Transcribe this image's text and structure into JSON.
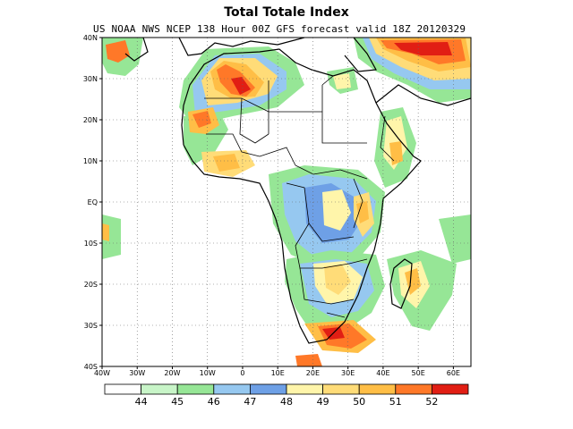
{
  "title": "Total Totale Index",
  "subtitle": "US NOAA NWS NCEP 138 Hour 00Z GFS forecast valid 18Z 20120329",
  "map": {
    "lon_range": [
      -40,
      65
    ],
    "lat_range": [
      -40,
      40
    ],
    "lat_ticks": [
      {
        "lat": 40,
        "label": "40N"
      },
      {
        "lat": 30,
        "label": "30N"
      },
      {
        "lat": 20,
        "label": "20N"
      },
      {
        "lat": 10,
        "label": "10N"
      },
      {
        "lat": 0,
        "label": "EQ"
      },
      {
        "lat": -10,
        "label": "10S"
      },
      {
        "lat": -20,
        "label": "20S"
      },
      {
        "lat": -30,
        "label": "30S"
      },
      {
        "lat": -40,
        "label": "40S"
      }
    ],
    "lon_ticks": [
      {
        "lon": -40,
        "label": "40W"
      },
      {
        "lon": -30,
        "label": "30W"
      },
      {
        "lon": -20,
        "label": "20W"
      },
      {
        "lon": -10,
        "label": "10W"
      },
      {
        "lon": 0,
        "label": "0"
      },
      {
        "lon": 10,
        "label": "10E"
      },
      {
        "lon": 20,
        "label": "20E"
      },
      {
        "lon": 30,
        "label": "30E"
      },
      {
        "lon": 40,
        "label": "40E"
      },
      {
        "lon": 50,
        "label": "50E"
      },
      {
        "lon": 60,
        "label": "60E"
      }
    ],
    "gridlines": true
  },
  "colorbar": {
    "colors": [
      "#ffffff",
      "#c8f5c8",
      "#96e696",
      "#96c8f0",
      "#6ea0e6",
      "#fff5aa",
      "#ffdc78",
      "#ffbe46",
      "#ff7828",
      "#e11e14"
    ],
    "labels": [
      "44",
      "45",
      "46",
      "47",
      "48",
      "49",
      "50",
      "51",
      "52"
    ]
  },
  "fields": {
    "levels": [
      "44-45",
      "45-46",
      "46-47",
      "47-48",
      "48-49",
      "49-50",
      "50-51",
      "51-52",
      ">52"
    ],
    "regions": [
      {
        "name": "northwest-africa",
        "value": 52
      },
      {
        "name": "sahara-west",
        "value": 51
      },
      {
        "name": "west-africa-coast",
        "value": 50
      },
      {
        "name": "congo-basin",
        "value": 47
      },
      {
        "name": "east-africa-rift",
        "value": 48
      },
      {
        "name": "southern-africa",
        "value": 49
      },
      {
        "name": "middle-east",
        "value": 52
      },
      {
        "name": "south-africa-coast",
        "value": 51
      }
    ]
  }
}
